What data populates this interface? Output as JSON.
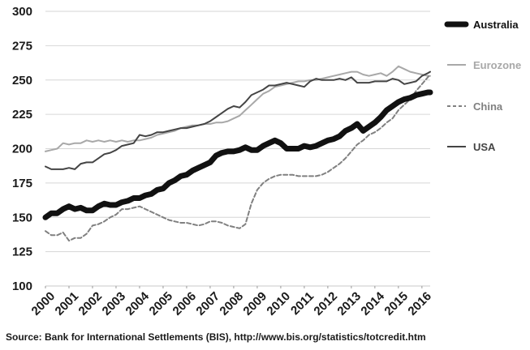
{
  "source_note": "Source: Bank for International Settlements (BIS), http://www.bis.org/statistics/totcredit.htm",
  "chart_data": {
    "type": "line",
    "title": "",
    "xlabel": "",
    "ylabel": "",
    "ylim": [
      100,
      300
    ],
    "xlim": [
      2000,
      2016.35
    ],
    "yticks": [
      100,
      125,
      150,
      175,
      200,
      225,
      250,
      275,
      300
    ],
    "xticks": [
      "2000",
      "2001",
      "2002",
      "2003",
      "2004",
      "2005",
      "2006",
      "2007",
      "2008",
      "2009",
      "2010",
      "2011",
      "2012",
      "2013",
      "2014",
      "2015",
      "2016"
    ],
    "grid": "horizontal",
    "legend_position": "right",
    "series": [
      {
        "name": "Australia",
        "color": "#111111",
        "style": "solid-thick",
        "x": [
          2000,
          2000.25,
          2000.5,
          2000.75,
          2001,
          2001.25,
          2001.5,
          2001.75,
          2002,
          2002.25,
          2002.5,
          2002.75,
          2003,
          2003.25,
          2003.5,
          2003.75,
          2004,
          2004.25,
          2004.5,
          2004.75,
          2005,
          2005.25,
          2005.5,
          2005.75,
          2006,
          2006.25,
          2006.5,
          2006.75,
          2007,
          2007.25,
          2007.5,
          2007.75,
          2008,
          2008.25,
          2008.5,
          2008.75,
          2009,
          2009.25,
          2009.5,
          2009.75,
          2010,
          2010.25,
          2010.5,
          2010.75,
          2011,
          2011.25,
          2011.5,
          2011.75,
          2012,
          2012.25,
          2012.5,
          2012.75,
          2013,
          2013.25,
          2013.5,
          2013.75,
          2014,
          2014.25,
          2014.5,
          2014.75,
          2015,
          2015.25,
          2015.5,
          2015.75,
          2016,
          2016.25,
          2016.35
        ],
        "values": [
          150,
          153,
          153,
          156,
          158,
          156,
          157,
          155,
          155,
          158,
          160,
          159,
          159,
          161,
          162,
          164,
          164,
          166,
          167,
          170,
          171,
          175,
          177,
          180,
          181,
          184,
          186,
          188,
          190,
          195,
          197,
          198,
          198,
          199,
          201,
          199,
          199,
          202,
          204,
          206,
          204,
          200,
          200,
          200,
          202,
          201,
          202,
          204,
          206,
          207,
          209,
          213,
          215,
          218,
          213,
          216,
          219,
          223,
          228,
          231,
          234,
          236,
          237,
          239,
          240,
          241,
          241
        ]
      },
      {
        "name": "Eurozone",
        "color": "#a8a8a8",
        "style": "solid",
        "x": [
          2000,
          2000.25,
          2000.5,
          2000.75,
          2001,
          2001.25,
          2001.5,
          2001.75,
          2002,
          2002.25,
          2002.5,
          2002.75,
          2003,
          2003.25,
          2003.5,
          2003.75,
          2004,
          2004.25,
          2004.5,
          2004.75,
          2005,
          2005.25,
          2005.5,
          2005.75,
          2006,
          2006.25,
          2006.5,
          2006.75,
          2007,
          2007.25,
          2007.5,
          2007.75,
          2008,
          2008.25,
          2008.5,
          2008.75,
          2009,
          2009.25,
          2009.5,
          2009.75,
          2010,
          2010.25,
          2010.5,
          2010.75,
          2011,
          2011.25,
          2011.5,
          2011.75,
          2012,
          2012.25,
          2012.5,
          2012.75,
          2013,
          2013.25,
          2013.5,
          2013.75,
          2014,
          2014.25,
          2014.5,
          2014.75,
          2015,
          2015.25,
          2015.5,
          2015.75,
          2016,
          2016.25,
          2016.35
        ],
        "values": [
          198,
          199,
          200,
          204,
          203,
          204,
          204,
          206,
          205,
          206,
          205,
          206,
          205,
          206,
          205,
          206,
          206,
          207,
          208,
          210,
          211,
          212,
          213,
          215,
          216,
          217,
          217,
          218,
          218,
          219,
          219,
          220,
          222,
          224,
          228,
          232,
          236,
          240,
          242,
          245,
          246,
          247,
          248,
          249,
          249,
          250,
          250,
          251,
          252,
          253,
          254,
          255,
          256,
          256,
          254,
          253,
          254,
          255,
          253,
          256,
          260,
          258,
          256,
          255,
          254,
          253,
          253
        ]
      },
      {
        "name": "China",
        "color": "#808080",
        "style": "dashed",
        "x": [
          2000,
          2000.25,
          2000.5,
          2000.75,
          2001,
          2001.25,
          2001.5,
          2001.75,
          2002,
          2002.25,
          2002.5,
          2002.75,
          2003,
          2003.25,
          2003.5,
          2003.75,
          2004,
          2004.25,
          2004.5,
          2004.75,
          2005,
          2005.25,
          2005.5,
          2005.75,
          2006,
          2006.25,
          2006.5,
          2006.75,
          2007,
          2007.25,
          2007.5,
          2007.75,
          2008,
          2008.25,
          2008.5,
          2008.75,
          2009,
          2009.25,
          2009.5,
          2009.75,
          2010,
          2010.25,
          2010.5,
          2010.75,
          2011,
          2011.25,
          2011.5,
          2011.75,
          2012,
          2012.25,
          2012.5,
          2012.75,
          2013,
          2013.25,
          2013.5,
          2013.75,
          2014,
          2014.25,
          2014.5,
          2014.75,
          2015,
          2015.25,
          2015.5,
          2015.75,
          2016,
          2016.25,
          2016.35
        ],
        "values": [
          140,
          137,
          137,
          139,
          133,
          135,
          135,
          138,
          144,
          145,
          147,
          150,
          152,
          156,
          156,
          157,
          158,
          156,
          154,
          152,
          150,
          148,
          147,
          146,
          146,
          145,
          144,
          145,
          147,
          147,
          146,
          144,
          143,
          142,
          145,
          160,
          170,
          175,
          178,
          180,
          181,
          181,
          181,
          180,
          180,
          180,
          180,
          181,
          183,
          186,
          189,
          193,
          198,
          203,
          206,
          210,
          212,
          215,
          219,
          222,
          228,
          232,
          236,
          242,
          247,
          252,
          254
        ]
      },
      {
        "name": "USA",
        "color": "#444444",
        "style": "solid",
        "x": [
          2000,
          2000.25,
          2000.5,
          2000.75,
          2001,
          2001.25,
          2001.5,
          2001.75,
          2002,
          2002.25,
          2002.5,
          2002.75,
          2003,
          2003.25,
          2003.5,
          2003.75,
          2004,
          2004.25,
          2004.5,
          2004.75,
          2005,
          2005.25,
          2005.5,
          2005.75,
          2006,
          2006.25,
          2006.5,
          2006.75,
          2007,
          2007.25,
          2007.5,
          2007.75,
          2008,
          2008.25,
          2008.5,
          2008.75,
          2009,
          2009.25,
          2009.5,
          2009.75,
          2010,
          2010.25,
          2010.5,
          2010.75,
          2011,
          2011.25,
          2011.5,
          2011.75,
          2012,
          2012.25,
          2012.5,
          2012.75,
          2013,
          2013.25,
          2013.5,
          2013.75,
          2014,
          2014.25,
          2014.5,
          2014.75,
          2015,
          2015.25,
          2015.5,
          2015.75,
          2016,
          2016.25,
          2016.35
        ],
        "values": [
          187,
          185,
          185,
          185,
          186,
          185,
          189,
          190,
          190,
          193,
          196,
          197,
          199,
          202,
          203,
          204,
          210,
          209,
          210,
          212,
          212,
          213,
          214,
          215,
          215,
          216,
          217,
          218,
          220,
          223,
          226,
          229,
          231,
          230,
          234,
          239,
          241,
          243,
          246,
          246,
          247,
          248,
          247,
          246,
          245,
          249,
          251,
          250,
          250,
          250,
          251,
          250,
          252,
          248,
          248,
          248,
          249,
          249,
          249,
          251,
          250,
          247,
          248,
          249,
          253,
          255,
          256
        ]
      }
    ]
  }
}
